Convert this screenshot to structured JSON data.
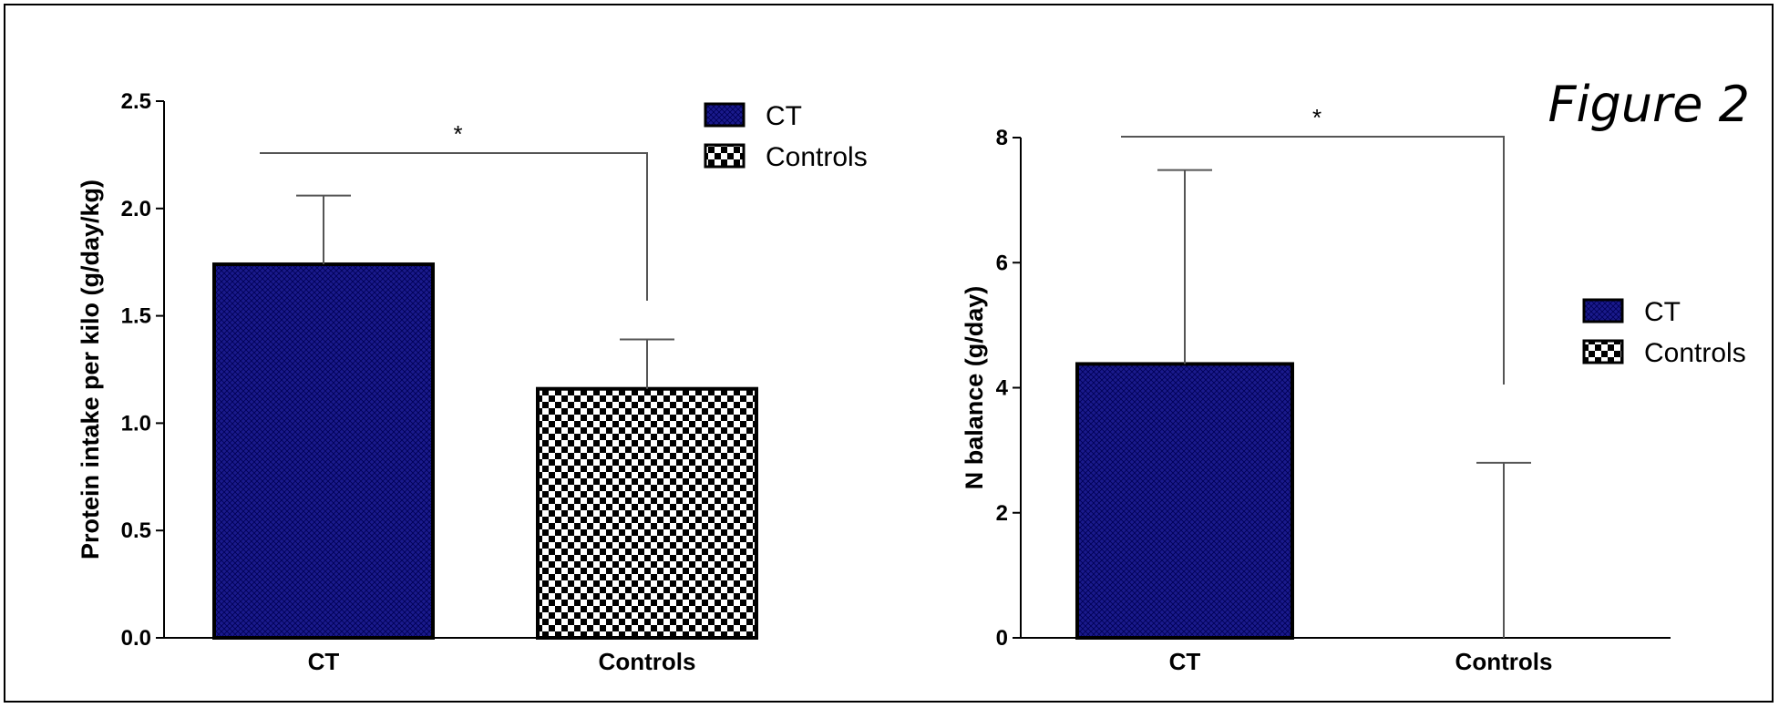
{
  "figure_title": "Figure 2",
  "colors": {
    "ct_fill": "#1a1a8c",
    "ct_line": "#000066",
    "axis": "#000000",
    "error": "#555555"
  },
  "chart_data": [
    {
      "type": "bar",
      "title": "",
      "categories": [
        "CT",
        "Controls"
      ],
      "series": [
        {
          "values": [
            1.74,
            1.16
          ],
          "errors_upper": [
            2.06,
            1.39
          ]
        }
      ],
      "ylabel": "Protein intake per kilo (g/day/kg)",
      "xlabel": "",
      "ylim": [
        0,
        2.5
      ],
      "yticks": [
        "0.0",
        "0.5",
        "1.0",
        "1.5",
        "2.0",
        "2.5"
      ],
      "ytick_values": [
        0,
        0.5,
        1.0,
        1.5,
        2.0,
        2.5
      ],
      "legend": {
        "entries": [
          "CT",
          "Controls"
        ],
        "placement": "top-right"
      },
      "significance": {
        "label": "*",
        "between": [
          "CT",
          "Controls"
        ]
      },
      "grid": false
    },
    {
      "type": "bar",
      "title": "",
      "categories": [
        "CT",
        "Controls"
      ],
      "series": [
        {
          "values": [
            4.38,
            0.0
          ],
          "errors_upper": [
            7.48,
            2.8
          ]
        }
      ],
      "ylabel": "N balance (g/day)",
      "xlabel": "",
      "ylim": [
        0,
        8
      ],
      "yticks": [
        "0",
        "2",
        "4",
        "6",
        "8"
      ],
      "ytick_values": [
        0,
        2,
        4,
        6,
        8
      ],
      "legend": {
        "entries": [
          "CT",
          "Controls"
        ],
        "placement": "right"
      },
      "significance": {
        "label": "*",
        "between": [
          "CT",
          "Controls"
        ]
      },
      "grid": false
    }
  ]
}
